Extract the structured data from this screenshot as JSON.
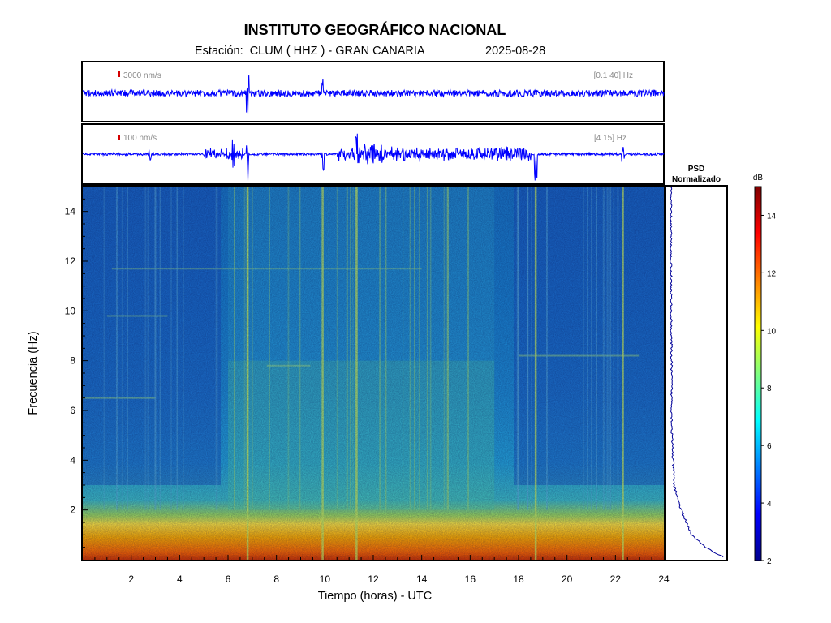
{
  "header": {
    "title": "INSTITUTO GEOGRÁFICO NACIONAL",
    "subtitle": "Estación:  CLUM ( HHZ ) - GRAN CANARIA",
    "date": "2025-08-28"
  },
  "traces": [
    {
      "scale_label": "3000 nm/s",
      "band_label": "[0.1 40] Hz",
      "scale_bar_color": "#d40000",
      "trace_color": "#0000ff"
    },
    {
      "scale_label": "100 nm/s",
      "band_label": "[4 15] Hz",
      "scale_bar_color": "#d40000",
      "trace_color": "#0000ff"
    }
  ],
  "psd": {
    "title_line1": "PSD",
    "title_line2": "Normalizado",
    "line_color": "#000099"
  },
  "colorbar": {
    "unit": "dB",
    "range": [
      2,
      15
    ],
    "ticks": [
      "2",
      "4",
      "6",
      "8",
      "10",
      "12",
      "14"
    ]
  },
  "chart_data": {
    "type": "heatmap",
    "xlabel": "Tiempo (horas) - UTC",
    "ylabel": "Frecuencia  (Hz)",
    "xlim": [
      0,
      24
    ],
    "ylim": [
      0,
      15
    ],
    "xticks": [
      "2",
      "4",
      "6",
      "8",
      "10",
      "12",
      "14",
      "16",
      "18",
      "20",
      "22",
      "24"
    ],
    "yticks": [
      "2",
      "4",
      "6",
      "8",
      "10",
      "12",
      "14"
    ],
    "colormap": "jet",
    "color_range_db": [
      2,
      15
    ],
    "noise_level_db": [
      {
        "frequency_hz": 0.3,
        "level_db": 13.5
      },
      {
        "frequency_hz": 1,
        "level_db": 11.5
      },
      {
        "frequency_hz": 2,
        "level_db": 8
      },
      {
        "frequency_hz": 4,
        "level_db": 6.5
      },
      {
        "frequency_hz": 8,
        "level_db": 5.5
      },
      {
        "frequency_hz": 14,
        "level_db": 5
      }
    ],
    "high_noise_period_hours": [
      6,
      17
    ],
    "events_hours": [
      6.8,
      9.9,
      11.3,
      18.7,
      22.3
    ],
    "psd_profile": [
      {
        "frequency_hz": 0.1,
        "normalized": 1.0
      },
      {
        "frequency_hz": 0.5,
        "normalized": 0.65
      },
      {
        "frequency_hz": 1,
        "normalized": 0.4
      },
      {
        "frequency_hz": 2,
        "normalized": 0.2
      },
      {
        "frequency_hz": 3,
        "normalized": 0.07
      },
      {
        "frequency_hz": 5,
        "normalized": 0.03
      },
      {
        "frequency_hz": 10,
        "normalized": 0.015
      },
      {
        "frequency_hz": 15,
        "normalized": 0.01
      }
    ]
  }
}
